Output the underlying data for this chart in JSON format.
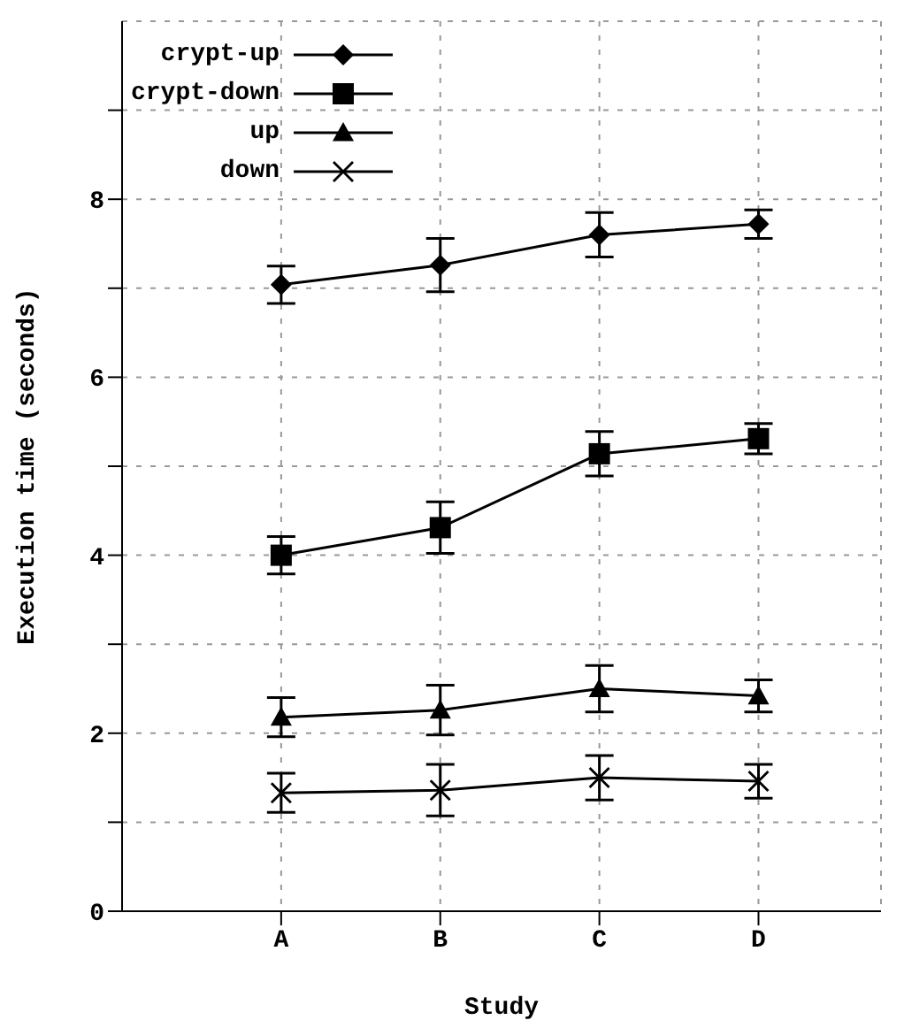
{
  "chart_data": {
    "type": "line",
    "xlabel": "Study",
    "ylabel": "Execution time (seconds)",
    "categories": [
      "A",
      "B",
      "C",
      "D"
    ],
    "series": [
      {
        "name": "crypt-up",
        "color": "#000000",
        "marker": "diamond",
        "values": [
          7.04,
          7.26,
          7.6,
          7.72
        ],
        "errors": [
          0.21,
          0.3,
          0.25,
          0.16
        ]
      },
      {
        "name": "crypt-down",
        "color": "#000000",
        "marker": "square",
        "values": [
          4.0,
          4.31,
          5.14,
          5.31
        ],
        "errors": [
          0.21,
          0.29,
          0.25,
          0.17
        ]
      },
      {
        "name": "up",
        "color": "#000000",
        "marker": "triangle",
        "values": [
          2.18,
          2.26,
          2.5,
          2.42
        ],
        "errors": [
          0.22,
          0.28,
          0.26,
          0.18
        ]
      },
      {
        "name": "down",
        "color": "#000000",
        "marker": "cross",
        "values": [
          1.33,
          1.36,
          1.5,
          1.46
        ],
        "errors": [
          0.22,
          0.29,
          0.25,
          0.19
        ]
      }
    ],
    "ylim": [
      0,
      10
    ],
    "yticks": [
      0,
      {
        "value": 1,
        "label": null
      },
      2,
      {
        "value": 3,
        "label": null
      },
      4,
      {
        "value": 5,
        "label": null
      },
      6,
      {
        "value": 7,
        "label": null
      },
      8,
      {
        "value": 9,
        "label": null
      }
    ],
    "grid": true,
    "legend": "top left",
    "line_style": "solid"
  }
}
